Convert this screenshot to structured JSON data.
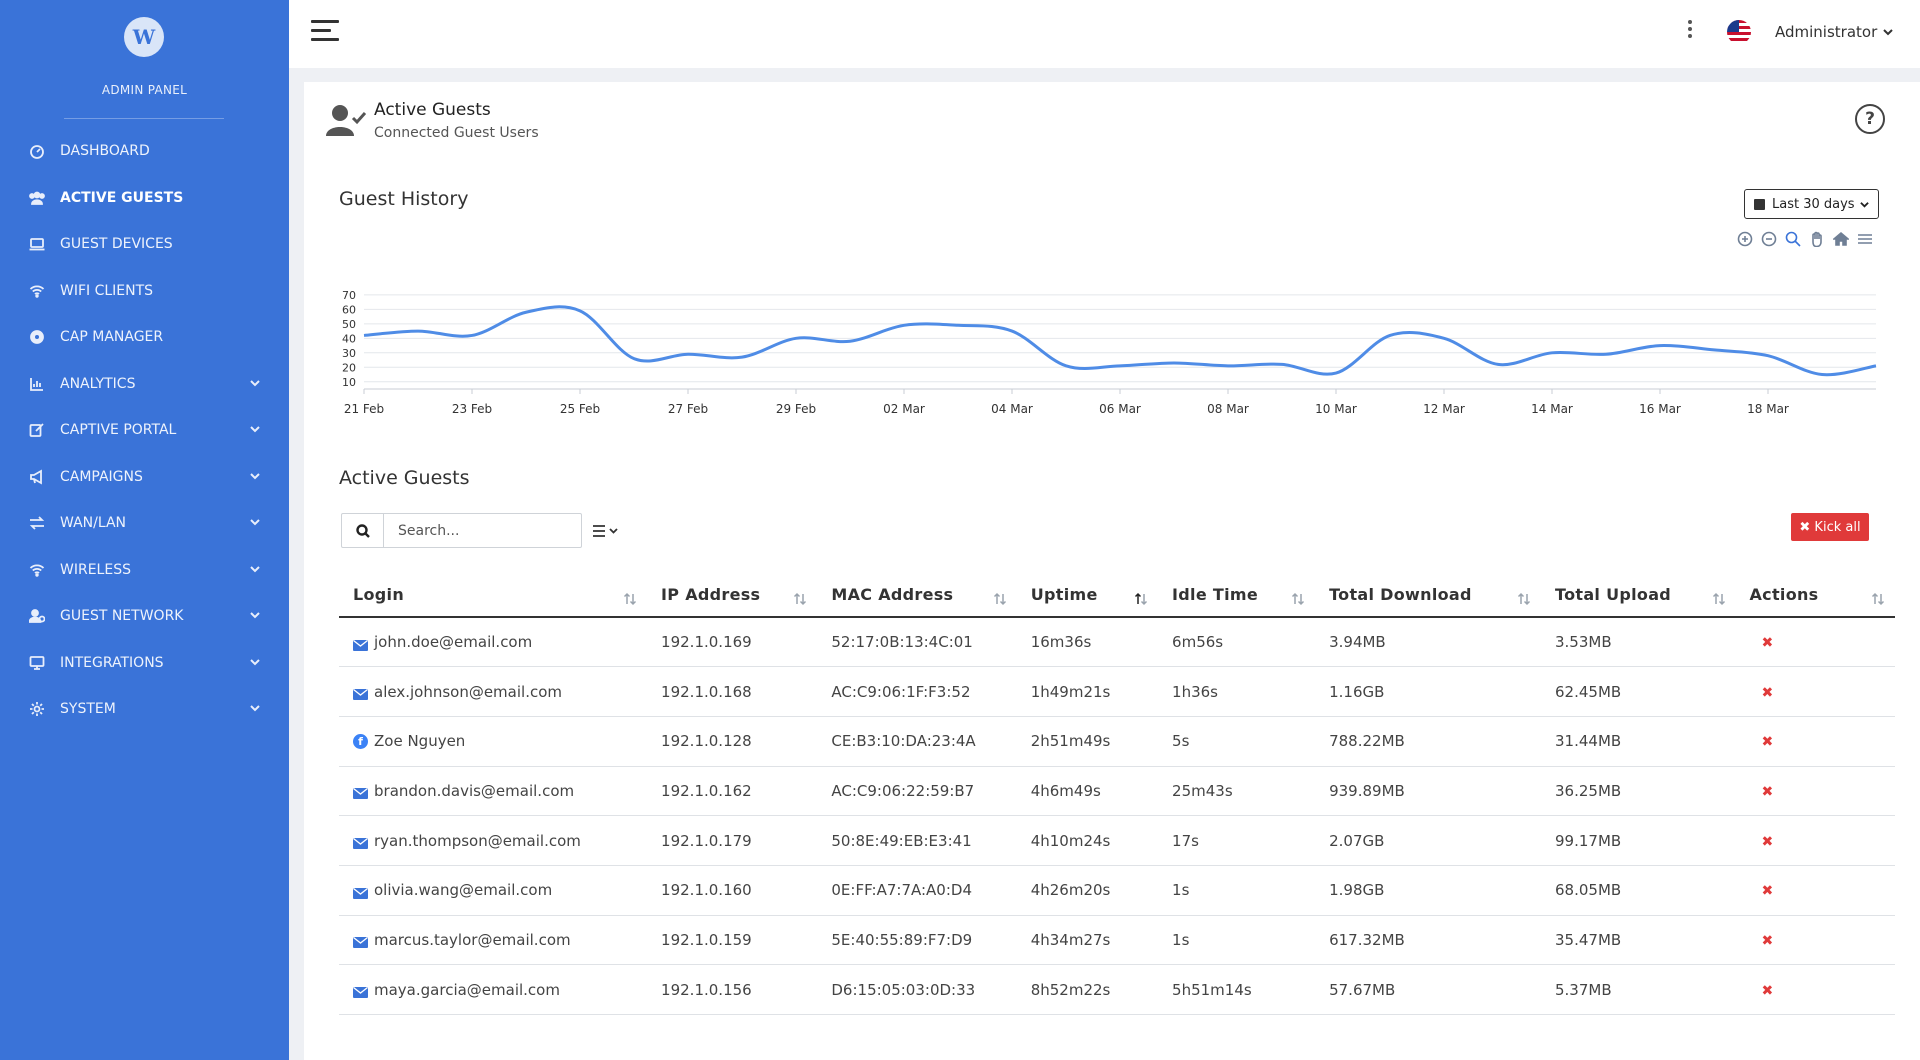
{
  "sidebar": {
    "title": "ADMIN PANEL",
    "items": [
      {
        "label": "DASHBOARD",
        "icon": "dashboard-icon",
        "expandable": false,
        "active": false
      },
      {
        "label": "ACTIVE GUESTS",
        "icon": "users-icon",
        "expandable": false,
        "active": true
      },
      {
        "label": "GUEST DEVICES",
        "icon": "laptop-icon",
        "expandable": false,
        "active": false
      },
      {
        "label": "WIFI CLIENTS",
        "icon": "wifi-icon",
        "expandable": false,
        "active": false
      },
      {
        "label": "CAP MANAGER",
        "icon": "circle-icon",
        "expandable": false,
        "active": false
      },
      {
        "label": "ANALYTICS",
        "icon": "chart-icon",
        "expandable": true,
        "active": false
      },
      {
        "label": "CAPTIVE PORTAL",
        "icon": "edit-icon",
        "expandable": true,
        "active": false
      },
      {
        "label": "CAMPAIGNS",
        "icon": "megaphone-icon",
        "expandable": true,
        "active": false
      },
      {
        "label": "WAN/LAN",
        "icon": "exchange-icon",
        "expandable": true,
        "active": false
      },
      {
        "label": "WIRELESS",
        "icon": "wifi-icon",
        "expandable": true,
        "active": false
      },
      {
        "label": "GUEST NETWORK",
        "icon": "user-network-icon",
        "expandable": true,
        "active": false
      },
      {
        "label": "INTEGRATIONS",
        "icon": "monitor-icon",
        "expandable": true,
        "active": false
      },
      {
        "label": "SYSTEM",
        "icon": "gear-icon",
        "expandable": true,
        "active": false
      }
    ]
  },
  "topbar": {
    "user": "Administrator"
  },
  "header": {
    "title": "Active Guests",
    "subtitle": "Connected Guest Users",
    "help": "?"
  },
  "history": {
    "title": "Guest History",
    "range_label": "Last 30 days"
  },
  "chart_data": {
    "type": "line",
    "title": "Guest History",
    "x_ticks": [
      "21 Feb",
      "23 Feb",
      "25 Feb",
      "27 Feb",
      "29 Feb",
      "02 Mar",
      "04 Mar",
      "06 Mar",
      "08 Mar",
      "10 Mar",
      "12 Mar",
      "14 Mar",
      "16 Mar",
      "18 Mar"
    ],
    "y_ticks": [
      10,
      20,
      30,
      40,
      50,
      60,
      70
    ],
    "ylim": [
      5,
      72
    ],
    "grid": true,
    "color": "#4f8ce6",
    "series": [
      {
        "x": [
          0,
          1,
          2,
          3,
          4,
          5,
          6,
          7,
          8,
          9,
          10,
          11,
          12,
          13,
          14,
          15,
          16,
          17,
          18,
          19,
          20,
          21,
          22,
          23,
          24,
          25,
          26,
          27,
          28
        ],
        "values": [
          42,
          45,
          42,
          58,
          59,
          26,
          29,
          27,
          40,
          38,
          49,
          49,
          45,
          21,
          21,
          23,
          21,
          22,
          16,
          42,
          40,
          22,
          30,
          29,
          35,
          32,
          28,
          15,
          21
        ]
      }
    ]
  },
  "guests": {
    "title": "Active Guests",
    "search_placeholder": "Search...",
    "kick_all": "✖ Kick all",
    "columns": [
      "Login",
      "IP Address",
      "MAC Address",
      "Uptime",
      "Idle Time",
      "Total Download",
      "Total Upload",
      "Actions"
    ],
    "rows": [
      {
        "login": "john.doe@email.com",
        "type": "email",
        "ip": "192.1.0.169",
        "mac": "52:17:0B:13:4C:01",
        "uptime": "16m36s",
        "idle": "6m56s",
        "download": "3.94MB",
        "upload": "3.53MB"
      },
      {
        "login": "alex.johnson@email.com",
        "type": "email",
        "ip": "192.1.0.168",
        "mac": "AC:C9:06:1F:F3:52",
        "uptime": "1h49m21s",
        "idle": "1h36s",
        "download": "1.16GB",
        "upload": "62.45MB"
      },
      {
        "login": "Zoe Nguyen",
        "type": "facebook",
        "ip": "192.1.0.128",
        "mac": "CE:B3:10:DA:23:4A",
        "uptime": "2h51m49s",
        "idle": "5s",
        "download": "788.22MB",
        "upload": "31.44MB"
      },
      {
        "login": "brandon.davis@email.com",
        "type": "email",
        "ip": "192.1.0.162",
        "mac": "AC:C9:06:22:59:B7",
        "uptime": "4h6m49s",
        "idle": "25m43s",
        "download": "939.89MB",
        "upload": "36.25MB"
      },
      {
        "login": "ryan.thompson@email.com",
        "type": "email",
        "ip": "192.1.0.179",
        "mac": "50:8E:49:EB:E3:41",
        "uptime": "4h10m24s",
        "idle": "17s",
        "download": "2.07GB",
        "upload": "99.17MB"
      },
      {
        "login": "olivia.wang@email.com",
        "type": "email",
        "ip": "192.1.0.160",
        "mac": "0E:FF:A7:7A:A0:D4",
        "uptime": "4h26m20s",
        "idle": "1s",
        "download": "1.98GB",
        "upload": "68.05MB"
      },
      {
        "login": "marcus.taylor@email.com",
        "type": "email",
        "ip": "192.1.0.159",
        "mac": "5E:40:55:89:F7:D9",
        "uptime": "4h34m27s",
        "idle": "1s",
        "download": "617.32MB",
        "upload": "35.47MB"
      },
      {
        "login": "maya.garcia@email.com",
        "type": "email",
        "ip": "192.1.0.156",
        "mac": "D6:15:05:03:0D:33",
        "uptime": "8h52m22s",
        "idle": "5h51m14s",
        "download": "57.67MB",
        "upload": "5.37MB"
      }
    ]
  }
}
